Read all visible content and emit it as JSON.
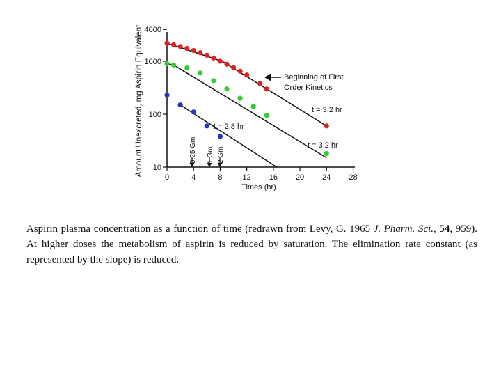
{
  "chart_data": {
    "type": "scatter",
    "ylabel": "Amount Unexcreted, mg Aspirin Equivalent",
    "xlabel": "Times (hr)",
    "x_ticks": [
      0,
      4,
      8,
      12,
      16,
      20,
      24,
      28
    ],
    "y_ticks": [
      10,
      100,
      1000,
      4000
    ],
    "y_tick_labels": [
      "10",
      "100",
      "1000",
      "4000"
    ],
    "xlim": [
      0,
      28
    ],
    "ylim": [
      10,
      4000
    ],
    "y_scale": "log",
    "grid": false,
    "series": [
      {
        "color": "#dd2222",
        "points": [
          [
            0,
            2200
          ],
          [
            1,
            2050
          ],
          [
            2,
            1900
          ],
          [
            3,
            1750
          ],
          [
            4,
            1600
          ],
          [
            5,
            1450
          ],
          [
            6,
            1300
          ],
          [
            7,
            1150
          ],
          [
            8,
            1000
          ],
          [
            9,
            880
          ],
          [
            10,
            760
          ],
          [
            11,
            650
          ],
          [
            12,
            550
          ],
          [
            14,
            380
          ],
          [
            15,
            300
          ],
          [
            24,
            60
          ]
        ]
      },
      {
        "color": "#33cc33",
        "points": [
          [
            0,
            900
          ],
          [
            1,
            850
          ],
          [
            3,
            750
          ],
          [
            5,
            600
          ],
          [
            7,
            430
          ],
          [
            9,
            300
          ],
          [
            11,
            200
          ],
          [
            13,
            140
          ],
          [
            15,
            95
          ],
          [
            24,
            18
          ]
        ]
      },
      {
        "color": "#2233cc",
        "points": [
          [
            0,
            230
          ],
          [
            2,
            150
          ],
          [
            4,
            110
          ],
          [
            6,
            60
          ],
          [
            8,
            38
          ]
        ]
      }
    ],
    "fit_lines": [
      {
        "x": [
          0,
          8.3
        ],
        "y": [
          2200,
          1000
        ]
      },
      {
        "x": [
          8.3,
          24
        ],
        "y": [
          1000,
          60
        ]
      },
      {
        "x": [
          0,
          1
        ],
        "y": [
          900,
          850
        ]
      },
      {
        "x": [
          1,
          24
        ],
        "y": [
          850,
          15
        ]
      },
      {
        "x": [
          2,
          16.5
        ],
        "y": [
          150,
          10
        ]
      }
    ],
    "dose_labels": [
      "0.25 Gm",
      "1 Gm",
      "2 Gm"
    ],
    "annotations": {
      "beginning": [
        "Beginning of First",
        "Order Kinetics"
      ],
      "half_life_red": "t = 3.2 hr",
      "half_life_green": "t = 3.2 hr",
      "half_life_blue": "t = 2.8 hr"
    }
  },
  "caption": {
    "lead": "Aspirin plasma concentration as a function of time (redrawn from Levy, G. 1965 ",
    "journal": "J. Pharm. Sci.",
    "sep": ", ",
    "volume": "54",
    "rest": ", 959). At higher doses the metabolism of aspirin is reduced by saturation. The elimination rate constant (as represented by the slope) is reduced."
  }
}
